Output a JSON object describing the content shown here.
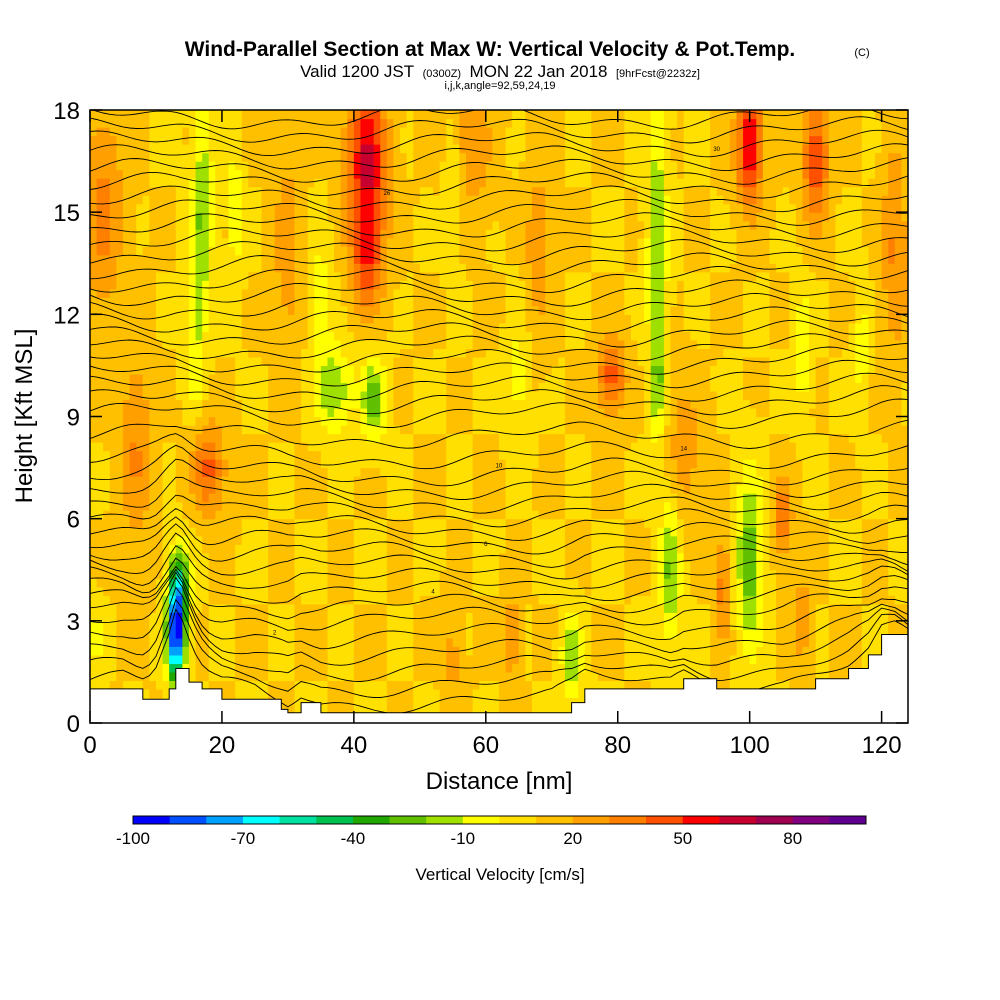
{
  "chart_data": {
    "type": "heatmap",
    "title": "Wind-Parallel Section at Max W: Vertical Velocity & Pot.Temp.",
    "title_mark": "(C)",
    "subtitle_parts": [
      "Valid 1200 JST",
      "(0300Z)",
      "MON 22 Jan 2018",
      "[9hrFcst@2232z]"
    ],
    "subtitle2": "i,j,k,angle=92,59,24,19",
    "xlabel": "Distance [nm]",
    "ylabel": "Height [Kft MSL]",
    "xlim": [
      0,
      124
    ],
    "ylim": [
      0,
      18
    ],
    "xticks": [
      "0",
      "20",
      "40",
      "60",
      "80",
      "100",
      "120"
    ],
    "yticks": [
      "0",
      "3",
      "6",
      "9",
      "12",
      "15",
      "18"
    ],
    "colorbar": {
      "label": "Vertical Velocity [cm/s]",
      "levels": [
        -100,
        -90,
        -80,
        -70,
        -60,
        -50,
        -40,
        -30,
        -20,
        -10,
        0,
        10,
        20,
        30,
        40,
        50,
        60,
        70,
        80,
        90
      ],
      "colors": [
        "#0000ff",
        "#0050ff",
        "#00a0ff",
        "#00ffff",
        "#00e0a0",
        "#00c050",
        "#20a800",
        "#60c000",
        "#a0e000",
        "#ffff00",
        "#ffe000",
        "#ffc000",
        "#ffa000",
        "#ff8000",
        "#ff5000",
        "#ff0000",
        "#c80030",
        "#a00050",
        "#800080",
        "#600090"
      ],
      "tick_labels": [
        "-100",
        "-70",
        "-40",
        "-10",
        "20",
        "50",
        "80"
      ]
    },
    "background_value": 10,
    "velocity_features": [
      {
        "x": 13,
        "y": 2.5,
        "sx": 1.3,
        "sy": 1.3,
        "w": -100
      },
      {
        "x": 13.5,
        "y": 4.0,
        "sx": 1.6,
        "sy": 1.2,
        "w": -55
      },
      {
        "x": 17,
        "y": 15.0,
        "sx": 1.5,
        "sy": 3.0,
        "w": -32
      },
      {
        "x": 16,
        "y": 11.0,
        "sx": 1.2,
        "sy": 2.0,
        "w": -18
      },
      {
        "x": 22,
        "y": 15.0,
        "sx": 1.0,
        "sy": 2.2,
        "w": -18
      },
      {
        "x": 37,
        "y": 9.8,
        "sx": 2.8,
        "sy": 1.2,
        "w": -30
      },
      {
        "x": 43,
        "y": 9.5,
        "sx": 1.8,
        "sy": 1.2,
        "w": -35
      },
      {
        "x": 35,
        "y": 12.5,
        "sx": 1.8,
        "sy": 2.0,
        "w": -14
      },
      {
        "x": 55,
        "y": 15.5,
        "sx": 1.2,
        "sy": 2.0,
        "w": -14
      },
      {
        "x": 65,
        "y": 10.0,
        "sx": 1.5,
        "sy": 2.2,
        "w": -14
      },
      {
        "x": 86,
        "y": 14.0,
        "sx": 1.5,
        "sy": 4.5,
        "w": -30
      },
      {
        "x": 86,
        "y": 10.0,
        "sx": 1.0,
        "sy": 1.5,
        "w": -22
      },
      {
        "x": 88,
        "y": 4.5,
        "sx": 1.5,
        "sy": 2.2,
        "w": -32
      },
      {
        "x": 100,
        "y": 4.8,
        "sx": 2.0,
        "sy": 2.5,
        "w": -38
      },
      {
        "x": 108,
        "y": 11.0,
        "sx": 1.2,
        "sy": 1.8,
        "w": -20
      },
      {
        "x": 117,
        "y": 11.0,
        "sx": 1.0,
        "sy": 1.8,
        "w": -16
      },
      {
        "x": 73,
        "y": 2.0,
        "sx": 1.5,
        "sy": 1.2,
        "w": -30
      },
      {
        "x": 1,
        "y": 2.5,
        "sx": 1.2,
        "sy": 1.0,
        "w": -14
      },
      {
        "x": 42,
        "y": 16.5,
        "sx": 3.0,
        "sy": 2.5,
        "w": 52
      },
      {
        "x": 42,
        "y": 13.5,
        "sx": 2.5,
        "sy": 1.5,
        "w": 30
      },
      {
        "x": 18,
        "y": 7.5,
        "sx": 2.5,
        "sy": 1.3,
        "w": 33
      },
      {
        "x": 79,
        "y": 10.2,
        "sx": 2.2,
        "sy": 1.2,
        "w": 35
      },
      {
        "x": 100,
        "y": 17.0,
        "sx": 2.0,
        "sy": 1.8,
        "w": 52
      },
      {
        "x": 110,
        "y": 16.5,
        "sx": 2.0,
        "sy": 1.8,
        "w": 40
      },
      {
        "x": 105,
        "y": 6.0,
        "sx": 1.5,
        "sy": 1.2,
        "w": 28
      },
      {
        "x": 96,
        "y": 4.0,
        "sx": 1.2,
        "sy": 1.5,
        "w": 26
      },
      {
        "x": 108,
        "y": 3.0,
        "sx": 1.2,
        "sy": 1.2,
        "w": 22
      },
      {
        "x": 2,
        "y": 15.0,
        "sx": 3.0,
        "sy": 3.0,
        "w": 24
      },
      {
        "x": 58,
        "y": 17.0,
        "sx": 3.0,
        "sy": 2.0,
        "w": 18
      },
      {
        "x": 7,
        "y": 8.0,
        "sx": 2.5,
        "sy": 3.0,
        "w": 20
      },
      {
        "x": 30,
        "y": 14.0,
        "sx": 2.0,
        "sy": 3.0,
        "w": 18
      },
      {
        "x": 122,
        "y": 14.0,
        "sx": 2.0,
        "sy": 3.0,
        "w": 22
      },
      {
        "x": 68,
        "y": 14.0,
        "sx": 2.0,
        "sy": 2.5,
        "w": 18
      },
      {
        "x": 90,
        "y": 8.0,
        "sx": 2.5,
        "sy": 2.0,
        "w": 18
      },
      {
        "x": 55,
        "y": 2.0,
        "sx": 1.5,
        "sy": 1.5,
        "w": 14
      },
      {
        "x": 64,
        "y": 2.5,
        "sx": 1.2,
        "sy": 1.8,
        "w": 16
      }
    ],
    "theta_isentropes": {
      "base_heights": [
        0.4,
        0.9,
        1.4,
        1.9,
        2.4,
        2.9,
        3.3,
        3.7,
        4.1,
        4.5,
        4.9,
        5.3,
        5.7,
        6.1,
        6.5,
        6.9,
        7.3,
        7.8,
        8.4,
        9.0,
        9.4,
        9.8,
        10.2,
        10.6,
        11.0,
        11.4,
        11.8,
        12.2,
        12.6,
        13.0,
        13.4,
        13.8,
        14.2,
        14.6,
        15.0,
        15.4,
        15.8,
        16.2,
        16.6,
        17.0,
        17.4,
        17.8
      ],
      "labels": [
        {
          "x": 28,
          "y": 2.6,
          "t": "2"
        },
        {
          "x": 52,
          "y": 3.8,
          "t": "4"
        },
        {
          "x": 60,
          "y": 5.2,
          "t": "6"
        },
        {
          "x": 62,
          "y": 7.5,
          "t": "10"
        },
        {
          "x": 90,
          "y": 8.0,
          "t": "14"
        },
        {
          "x": 45,
          "y": 15.5,
          "t": "26"
        },
        {
          "x": 95,
          "y": 16.8,
          "t": "30"
        }
      ]
    },
    "terrain": {
      "x": [
        0,
        5,
        8,
        10,
        12,
        13,
        15,
        17,
        20,
        25,
        29,
        30,
        32,
        35,
        40,
        45,
        50,
        55,
        60,
        65,
        70,
        73,
        75,
        80,
        85,
        88,
        90,
        95,
        100,
        105,
        110,
        115,
        118,
        120,
        122,
        124
      ],
      "y": [
        1.0,
        1.0,
        0.7,
        0.7,
        1.0,
        1.6,
        1.2,
        1.0,
        0.7,
        0.7,
        0.4,
        0.3,
        0.6,
        0.3,
        0.3,
        0.3,
        0.3,
        0.3,
        0.3,
        0.3,
        0.3,
        0.6,
        1.0,
        1.0,
        1.0,
        1.0,
        1.3,
        1.0,
        1.0,
        1.0,
        1.3,
        1.6,
        2.0,
        2.6,
        2.6,
        2.3
      ]
    }
  }
}
